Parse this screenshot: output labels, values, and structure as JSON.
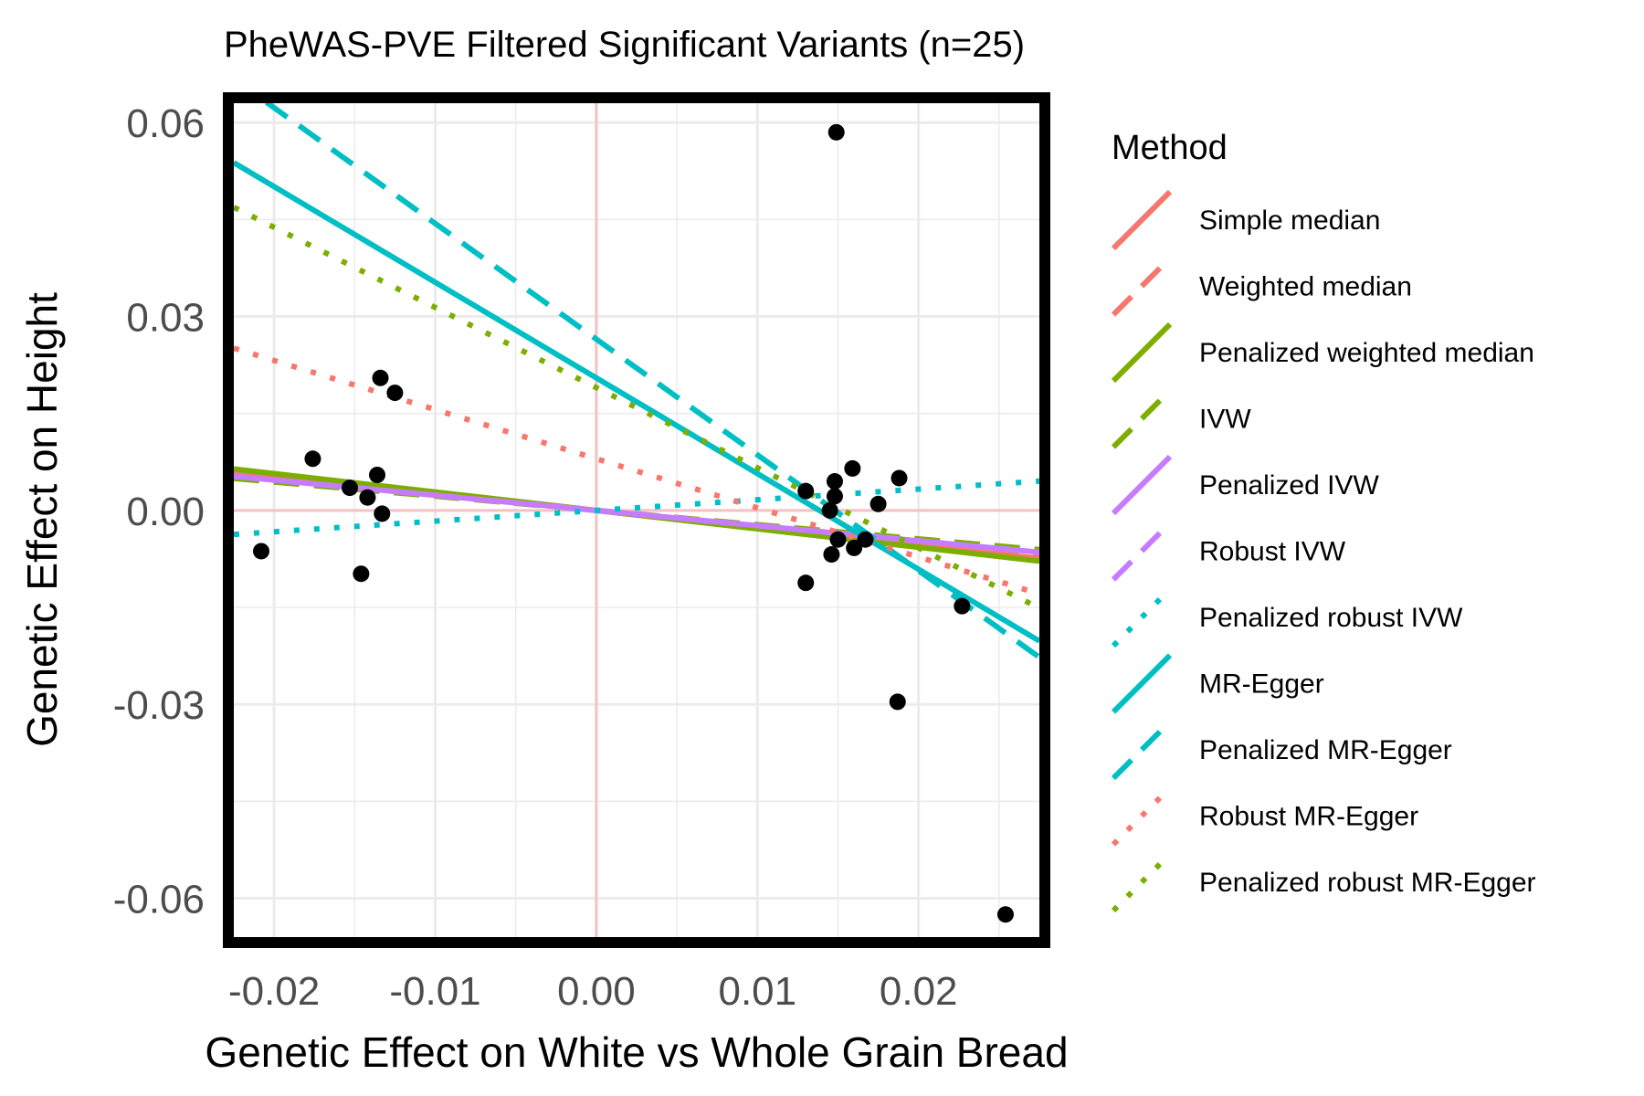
{
  "chart_data": {
    "type": "scatter",
    "title": "PheWAS-PVE Filtered Significant Variants (n=25)",
    "xlabel": "Genetic Effect on White vs Whole Grain Bread",
    "ylabel": "Genetic Effect on Height",
    "xlim": [
      -0.0225,
      0.0275
    ],
    "ylim": [
      -0.066,
      0.063
    ],
    "x_ticks": [
      -0.02,
      -0.01,
      0.0,
      0.01,
      0.02
    ],
    "x_tick_labels": [
      "-0.02",
      "-0.01",
      "0.00",
      "0.01",
      "0.02"
    ],
    "y_ticks": [
      -0.06,
      -0.03,
      0.0,
      0.03,
      0.06
    ],
    "y_tick_labels": [
      "-0.06",
      "-0.03",
      "0.00",
      "0.03",
      "0.06"
    ],
    "grid": true,
    "legend_position": "right",
    "legend_title": "Method",
    "points": [
      {
        "x": -0.0208,
        "y": -0.0063
      },
      {
        "x": -0.0176,
        "y": 0.008
      },
      {
        "x": -0.0153,
        "y": 0.0035
      },
      {
        "x": -0.0146,
        "y": -0.0098
      },
      {
        "x": -0.0142,
        "y": 0.002
      },
      {
        "x": -0.0136,
        "y": 0.0055
      },
      {
        "x": -0.0134,
        "y": 0.0205
      },
      {
        "x": -0.0133,
        "y": -0.0005
      },
      {
        "x": -0.0125,
        "y": 0.0182
      },
      {
        "x": 0.013,
        "y": -0.0112
      },
      {
        "x": 0.013,
        "y": 0.003
      },
      {
        "x": 0.0145,
        "y": 0.0
      },
      {
        "x": 0.0146,
        "y": -0.0068
      },
      {
        "x": 0.0148,
        "y": 0.0045
      },
      {
        "x": 0.0148,
        "y": 0.0022
      },
      {
        "x": 0.0149,
        "y": 0.0585
      },
      {
        "x": 0.015,
        "y": -0.0045
      },
      {
        "x": 0.0159,
        "y": 0.0065
      },
      {
        "x": 0.016,
        "y": -0.0058
      },
      {
        "x": 0.0167,
        "y": -0.0045
      },
      {
        "x": 0.0175,
        "y": 0.001
      },
      {
        "x": 0.0187,
        "y": -0.0296
      },
      {
        "x": 0.0188,
        "y": 0.005
      },
      {
        "x": 0.0227,
        "y": -0.0148
      },
      {
        "x": 0.0254,
        "y": -0.0625
      }
    ],
    "series": [
      {
        "name": "Simple median",
        "color": "#F8766D",
        "dash": "solid",
        "intercept": 0.0,
        "slope": -0.27
      },
      {
        "name": "Weighted median",
        "color": "#F8766D",
        "dash": "dashed",
        "intercept": 0.0,
        "slope": -0.26
      },
      {
        "name": "Penalized weighted median",
        "color": "#7CAE00",
        "dash": "solid",
        "intercept": 0.0,
        "slope": -0.285
      },
      {
        "name": "IVW",
        "color": "#7CAE00",
        "dash": "dashed",
        "intercept": 0.0,
        "slope": -0.22
      },
      {
        "name": "Penalized IVW",
        "color": "#C77CFF",
        "dash": "solid",
        "intercept": 0.0,
        "slope": -0.235
      },
      {
        "name": "Robust IVW",
        "color": "#C77CFF",
        "dash": "dashed",
        "intercept": 0.0,
        "slope": -0.235
      },
      {
        "name": "Penalized robust IVW",
        "color": "#00BFC4",
        "dash": "dotted",
        "intercept": 0.0,
        "slope": 0.165
      },
      {
        "name": "MR-Egger",
        "color": "#00BFC4",
        "dash": "solid",
        "intercept": 0.0205,
        "slope": -1.48
      },
      {
        "name": "Penalized MR-Egger",
        "color": "#00BFC4",
        "dash": "dashed",
        "intercept": 0.0265,
        "slope": -1.79
      },
      {
        "name": "Robust MR-Egger",
        "color": "#F8766D",
        "dash": "dotted",
        "intercept": 0.008,
        "slope": -0.76
      },
      {
        "name": "Penalized robust MR-Egger",
        "color": "#7CAE00",
        "dash": "dotted",
        "intercept": 0.019,
        "slope": -1.24
      }
    ]
  }
}
